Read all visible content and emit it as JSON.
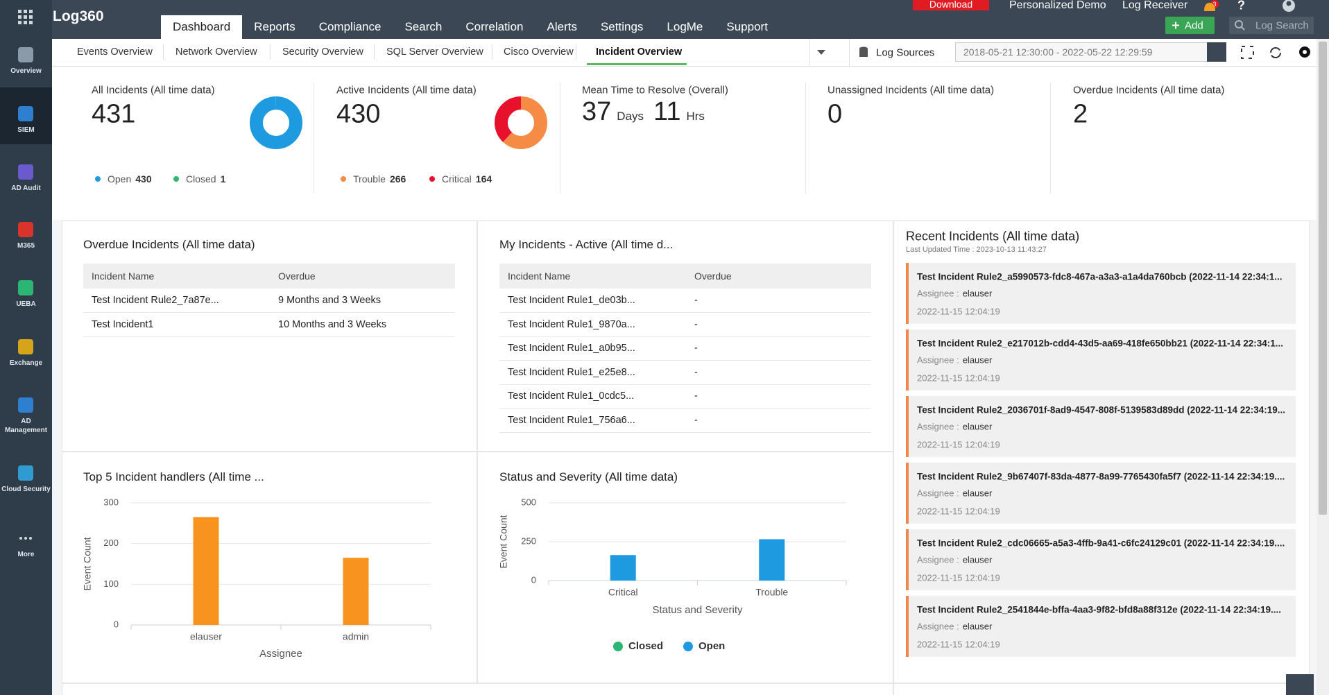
{
  "logo": "Log360",
  "sidebar": [
    "Overview",
    "SIEM",
    "AD Audit",
    "M365",
    "UEBA",
    "Exchange",
    "AD Management",
    "Cloud Security",
    "More"
  ],
  "top_tabs": [
    "Dashboard",
    "Reports",
    "Compliance",
    "Search",
    "Correlation",
    "Alerts",
    "Settings",
    "LogMe",
    "Support"
  ],
  "top_right": {
    "download": "Download",
    "demo": "Personalized Demo",
    "receiver": "Log Receiver",
    "notifications": "3",
    "help": "?",
    "add": "Add",
    "search": "Log Search"
  },
  "sub_tabs": [
    "Events Overview",
    "Network Overview",
    "Security Overview",
    "SQL Server Overview",
    "Cisco Overview",
    "Incident Overview"
  ],
  "log_sources": "Log Sources",
  "date_range": "2018-05-21 12:30:00 - 2022-05-22 12:29:59",
  "kpis": [
    {
      "title": "All Incidents (All time data)",
      "value": 431,
      "legend": [
        {
          "name": "Open",
          "value": 430,
          "color": "#1e9be0"
        },
        {
          "name": "Closed",
          "value": 1,
          "color": "#2bb673"
        }
      ]
    },
    {
      "title": "Active Incidents (All time data)",
      "value": 430,
      "legend": [
        {
          "name": "Trouble",
          "value": 266,
          "color": "#f68b45"
        },
        {
          "name": "Critical",
          "value": 164,
          "color": "#e8112d"
        }
      ]
    },
    {
      "title": "Mean Time to Resolve (Overall)",
      "parts": [
        {
          "value": 37,
          "unit": "Days"
        },
        {
          "value": 11,
          "unit": "Hrs"
        }
      ]
    },
    {
      "title": "Unassigned Incidents (All time data)",
      "value": 0
    },
    {
      "title": "Overdue Incidents (All time data)",
      "value": 2
    }
  ],
  "overdue": {
    "title": "Overdue Incidents (All time data)",
    "columns": [
      "Incident Name",
      "Overdue"
    ],
    "rows": [
      [
        "Test Incident Rule2_7a87e...",
        "9 Months and 3 Weeks"
      ],
      [
        "Test Incident1",
        "10 Months and 3 Weeks"
      ]
    ]
  },
  "my_incidents": {
    "title": "My Incidents - Active (All time d...",
    "columns": [
      "Incident Name",
      "Overdue"
    ],
    "rows": [
      [
        "Test Incident Rule1_de03b...",
        "-"
      ],
      [
        "Test Incident Rule1_9870a...",
        "-"
      ],
      [
        "Test Incident Rule1_a0b95...",
        "-"
      ],
      [
        "Test Incident Rule1_e25e8...",
        "-"
      ],
      [
        "Test Incident Rule1_0cdc5...",
        "-"
      ],
      [
        "Test Incident Rule1_756a6...",
        "-"
      ]
    ]
  },
  "recent": {
    "title": "Recent Incidents (All time data)",
    "updated": "Last Updated Time : 2023-10-13 11:43:27",
    "assignee_label": "Assignee :",
    "items": [
      {
        "name": "Test Incident Rule2_a5990573-fdc8-467a-a3a3-a1a4da760bcb (2022-11-14 22:34:1...",
        "assignee": "elauser",
        "time": "2022-11-15 12:04:19"
      },
      {
        "name": "Test Incident Rule2_e217012b-cdd4-43d5-aa69-418fe650bb21 (2022-11-14 22:34:1...",
        "assignee": "elauser",
        "time": "2022-11-15 12:04:19"
      },
      {
        "name": "Test Incident Rule2_2036701f-8ad9-4547-808f-5139583d89dd (2022-11-14 22:34:19...",
        "assignee": "elauser",
        "time": "2022-11-15 12:04:19"
      },
      {
        "name": "Test Incident Rule2_9b67407f-83da-4877-8a99-7765430fa5f7 (2022-11-14 22:34:19....",
        "assignee": "elauser",
        "time": "2022-11-15 12:04:19"
      },
      {
        "name": "Test Incident Rule2_cdc06665-a5a3-4ffb-9a41-c6fc24129c01 (2022-11-14 22:34:19....",
        "assignee": "elauser",
        "time": "2022-11-15 12:04:19"
      },
      {
        "name": "Test Incident Rule2_2541844e-bffa-4aa3-9f82-bfd8a88f312e (2022-11-14 22:34:19....",
        "assignee": "elauser",
        "time": "2022-11-15 12:04:19"
      }
    ]
  },
  "chart_data": [
    {
      "type": "bar",
      "title": "Top 5 Incident handlers (All time ...",
      "categories": [
        "elauser",
        "admin"
      ],
      "values": [
        265,
        165
      ],
      "color": "#f7931e",
      "xlabel": "Assignee",
      "ylabel": "Event Count",
      "ylim": [
        0,
        300
      ],
      "yticks": [
        0,
        100,
        200,
        300
      ],
      "grid": true
    },
    {
      "type": "bar",
      "title": "Status and Severity (All time data)",
      "categories": [
        "Critical",
        "Trouble"
      ],
      "series": [
        {
          "name": "Closed",
          "color": "#2bb673",
          "values": [
            0,
            0
          ]
        },
        {
          "name": "Open",
          "color": "#1e9be0",
          "values": [
            164,
            266
          ]
        }
      ],
      "stacked": true,
      "xlabel": "Status and Severity",
      "ylabel": "Event Count",
      "ylim": [
        0,
        500
      ],
      "yticks": [
        0,
        250,
        500
      ],
      "grid": true
    }
  ]
}
